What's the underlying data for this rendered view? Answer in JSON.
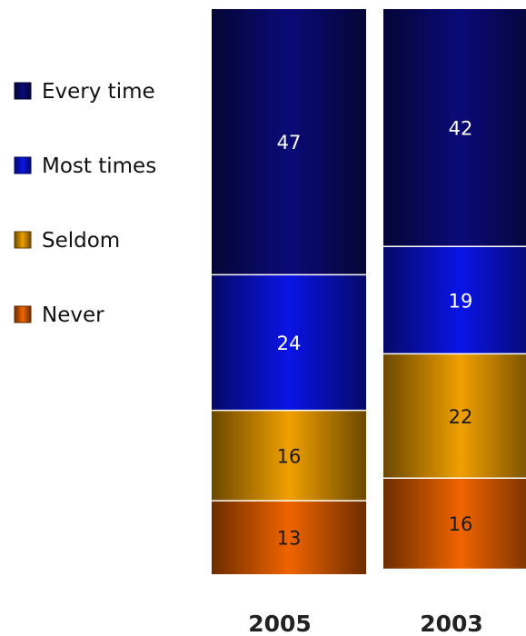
{
  "chart_data": {
    "type": "bar",
    "stacked": true,
    "categories": [
      "2005",
      "2003"
    ],
    "series": [
      {
        "name": "Every time",
        "values": [
          47,
          42
        ],
        "color": "#0a0a78"
      },
      {
        "name": "Most times",
        "values": [
          24,
          19
        ],
        "color": "#0a14e6"
      },
      {
        "name": "Seldom",
        "values": [
          16,
          22
        ],
        "color": "#f0a000"
      },
      {
        "name": "Never",
        "values": [
          13,
          16
        ],
        "color": "#f06400"
      }
    ],
    "title": "",
    "xlabel": "",
    "ylabel": "",
    "ylim": [
      0,
      100
    ],
    "grid": false,
    "legend_position": "left"
  }
}
